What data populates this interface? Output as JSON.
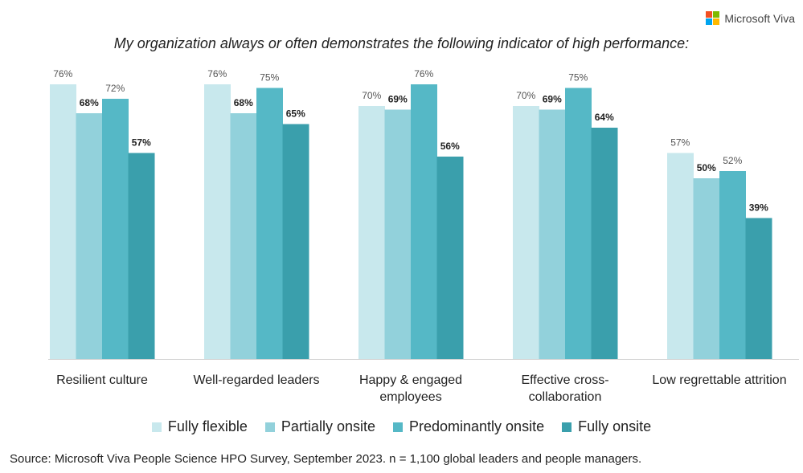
{
  "brand": {
    "name": "Microsoft Viva",
    "logo_colors": [
      "#f25022",
      "#7fba00",
      "#00a4ef",
      "#ffb900"
    ]
  },
  "chart_data": {
    "type": "bar",
    "title": "My organization always or often demonstrates the following indicator of high performance:",
    "categories": [
      "Resilient culture",
      "Well-regarded leaders",
      "Happy & engaged employees",
      "Effective cross-collaboration",
      "Low regrettable attrition"
    ],
    "category_lines": [
      [
        "Resilient culture"
      ],
      [
        "Well-regarded leaders"
      ],
      [
        "Happy & engaged",
        "employees"
      ],
      [
        "Effective cross-",
        "collaboration"
      ],
      [
        "Low regrettable attrition"
      ]
    ],
    "series": [
      {
        "name": "Fully flexible",
        "color": "#c8e8ed",
        "values": [
          76,
          76,
          70,
          70,
          57
        ],
        "bold_labels": false
      },
      {
        "name": "Partially onsite",
        "color": "#92d1db",
        "values": [
          68,
          68,
          69,
          69,
          50
        ],
        "bold_labels": true
      },
      {
        "name": "Predominantly onsite",
        "color": "#55b8c6",
        "values": [
          72,
          75,
          76,
          75,
          52
        ],
        "bold_labels": false
      },
      {
        "name": "Fully onsite",
        "color": "#3a9fac",
        "values": [
          57,
          65,
          56,
          64,
          39
        ],
        "bold_labels": true
      }
    ],
    "value_suffix": "%",
    "ylim": [
      0,
      76
    ],
    "grid": false,
    "legend_position": "bottom"
  },
  "source": "Source: Microsoft Viva People Science HPO Survey, September 2023. n = 1,100 global leaders and people managers."
}
